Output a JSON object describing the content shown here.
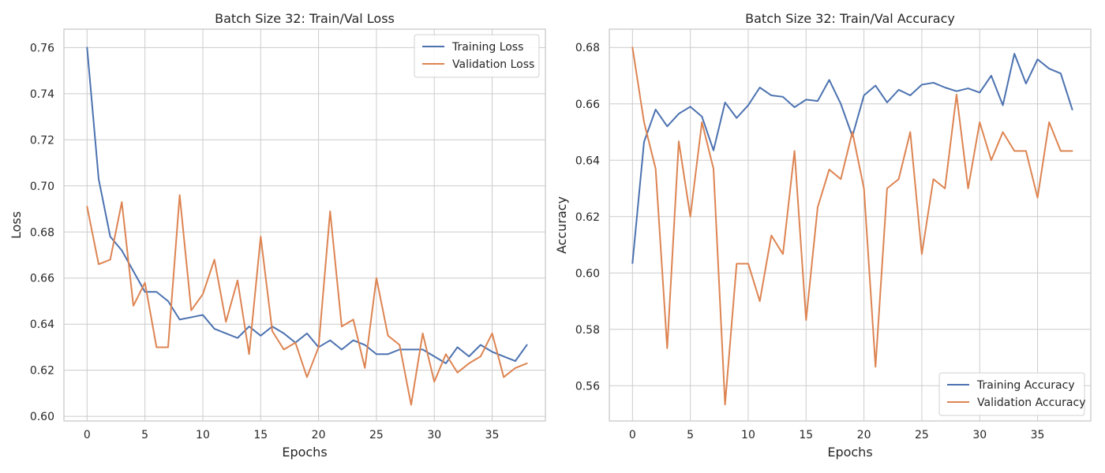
{
  "chart_data": [
    {
      "type": "line",
      "title": "Batch Size 32:  Train/Val Loss",
      "xlabel": "Epochs",
      "ylabel": "Loss",
      "xlim": [
        -2,
        39.6
      ],
      "ylim": [
        0.598,
        0.768
      ],
      "xticks": [
        0,
        5,
        10,
        15,
        20,
        25,
        30,
        35
      ],
      "yticks": [
        0.6,
        0.62,
        0.64,
        0.66,
        0.68,
        0.7,
        0.72,
        0.74,
        0.76
      ],
      "ytick_labels": [
        "0.60",
        "0.62",
        "0.64",
        "0.66",
        "0.68",
        "0.70",
        "0.72",
        "0.74",
        "0.76"
      ],
      "grid": true,
      "legend_position": "top-right",
      "x": [
        0,
        1,
        2,
        3,
        4,
        5,
        6,
        7,
        8,
        9,
        10,
        11,
        12,
        13,
        14,
        15,
        16,
        17,
        18,
        19,
        20,
        21,
        22,
        23,
        24,
        25,
        26,
        27,
        28,
        29,
        30,
        31,
        32,
        33,
        34,
        35,
        36,
        37,
        38
      ],
      "series": [
        {
          "name": "Training Loss",
          "color": "#4c72b0",
          "values": [
            0.76,
            0.703,
            0.678,
            0.672,
            0.663,
            0.654,
            0.654,
            0.65,
            0.642,
            0.643,
            0.644,
            0.638,
            0.636,
            0.634,
            0.639,
            0.635,
            0.639,
            0.636,
            0.632,
            0.636,
            0.63,
            0.633,
            0.629,
            0.633,
            0.631,
            0.627,
            0.627,
            0.629,
            0.629,
            0.629,
            0.626,
            0.623,
            0.63,
            0.626,
            0.631,
            0.628,
            0.626,
            0.624,
            0.631
          ]
        },
        {
          "name": "Validation Loss",
          "color": "#dd8452",
          "values": [
            0.691,
            0.666,
            0.668,
            0.693,
            0.648,
            0.658,
            0.63,
            0.63,
            0.696,
            0.646,
            0.653,
            0.668,
            0.641,
            0.659,
            0.627,
            0.678,
            0.637,
            0.629,
            0.632,
            0.617,
            0.63,
            0.689,
            0.639,
            0.642,
            0.621,
            0.66,
            0.635,
            0.631,
            0.605,
            0.636,
            0.615,
            0.627,
            0.619,
            0.623,
            0.626,
            0.636,
            0.617,
            0.621,
            0.623
          ]
        }
      ]
    },
    {
      "type": "line",
      "title": "Batch Size 32:  Train/Val Accuracy",
      "xlabel": "Epochs",
      "ylabel": "Accuracy",
      "xlim": [
        -2,
        39.6
      ],
      "ylim": [
        0.5475,
        0.6865
      ],
      "xticks": [
        0,
        5,
        10,
        15,
        20,
        25,
        30,
        35
      ],
      "yticks": [
        0.56,
        0.58,
        0.6,
        0.62,
        0.64,
        0.66,
        0.68
      ],
      "ytick_labels": [
        "0.56",
        "0.58",
        "0.60",
        "0.62",
        "0.64",
        "0.66",
        "0.68"
      ],
      "grid": true,
      "legend_position": "bottom-right",
      "x": [
        0,
        1,
        2,
        3,
        4,
        5,
        6,
        7,
        8,
        9,
        10,
        11,
        12,
        13,
        14,
        15,
        16,
        17,
        18,
        19,
        20,
        21,
        22,
        23,
        24,
        25,
        26,
        27,
        28,
        29,
        30,
        31,
        32,
        33,
        34,
        35,
        36,
        37,
        38
      ],
      "series": [
        {
          "name": "Training Accuracy",
          "color": "#4c72b0",
          "values": [
            0.6035,
            0.6465,
            0.658,
            0.652,
            0.6565,
            0.659,
            0.6555,
            0.6435,
            0.6605,
            0.655,
            0.6595,
            0.6658,
            0.663,
            0.6625,
            0.6588,
            0.6615,
            0.661,
            0.6685,
            0.66,
            0.6485,
            0.663,
            0.6665,
            0.6605,
            0.665,
            0.663,
            0.6668,
            0.6675,
            0.6658,
            0.6645,
            0.6655,
            0.664,
            0.67,
            0.6595,
            0.6778,
            0.6672,
            0.6758,
            0.6725,
            0.6708,
            0.658
          ]
        },
        {
          "name": "Validation Accuracy",
          "color": "#dd8452",
          "values": [
            0.68,
            0.6535,
            0.637,
            0.5733,
            0.6467,
            0.62,
            0.6535,
            0.637,
            0.5533,
            0.6033,
            0.6033,
            0.59,
            0.6133,
            0.6067,
            0.6433,
            0.5833,
            0.6233,
            0.6367,
            0.6333,
            0.65,
            0.63,
            0.5667,
            0.63,
            0.6333,
            0.65,
            0.6067,
            0.6333,
            0.63,
            0.6633,
            0.63,
            0.6535,
            0.64,
            0.65,
            0.6433,
            0.6433,
            0.6267,
            0.6535,
            0.6433,
            0.6433
          ]
        }
      ]
    }
  ]
}
